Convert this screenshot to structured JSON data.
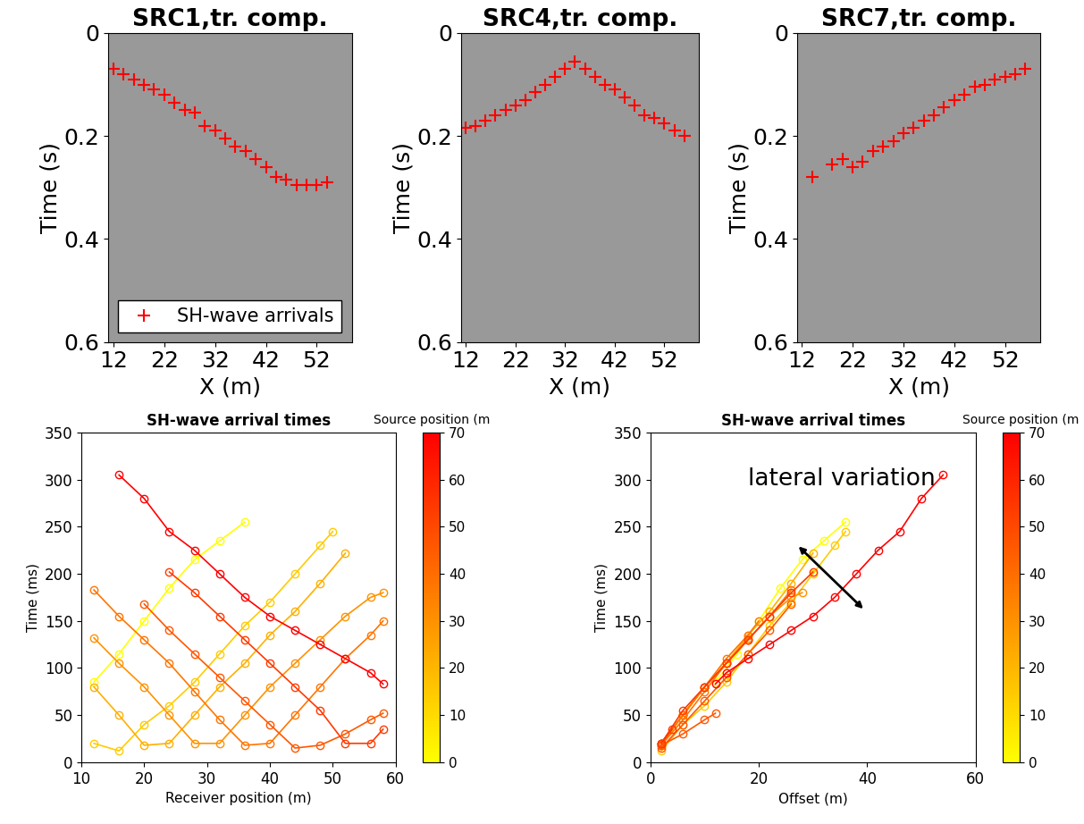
{
  "chart_data": [
    {
      "type": "scatter",
      "title": "SRC1,tr. comp.",
      "x_label": "X (m)",
      "y_label": "Time (s)",
      "xlim": [
        11,
        59
      ],
      "xticks": [
        12,
        22,
        32,
        42,
        52
      ],
      "ylim": [
        0.6,
        0
      ],
      "yticks": [
        0,
        0.2,
        0.4,
        0.6
      ],
      "legend": "lower left",
      "series": [
        {
          "name": "SH-wave arrivals",
          "color": "#ff0000",
          "marker": "plus",
          "x": [
            12,
            14,
            16,
            18,
            20,
            22,
            24,
            26,
            28,
            30,
            32,
            34,
            36,
            38,
            40,
            42,
            44,
            46,
            48,
            50,
            52,
            54
          ],
          "values": [
            0.07,
            0.08,
            0.09,
            0.1,
            0.11,
            0.12,
            0.135,
            0.15,
            0.155,
            0.18,
            0.19,
            0.205,
            0.22,
            0.23,
            0.245,
            0.26,
            0.28,
            0.285,
            0.295,
            0.295,
            0.295,
            0.29
          ]
        }
      ]
    },
    {
      "type": "scatter",
      "title": "SRC4,tr. comp.",
      "x_label": "X (m)",
      "y_label": "Time (s)",
      "xlim": [
        11,
        59
      ],
      "xticks": [
        12,
        22,
        32,
        42,
        52
      ],
      "ylim": [
        0.6,
        0
      ],
      "yticks": [
        0,
        0.2,
        0.4,
        0.6
      ],
      "series": [
        {
          "color": "#ff0000",
          "marker": "plus",
          "x": [
            12,
            14,
            16,
            18,
            20,
            22,
            24,
            26,
            28,
            30,
            32,
            34,
            36,
            38,
            40,
            42,
            44,
            46,
            48,
            50,
            52,
            54,
            56
          ],
          "values": [
            0.185,
            0.18,
            0.17,
            0.16,
            0.15,
            0.14,
            0.13,
            0.115,
            0.1,
            0.085,
            0.07,
            0.055,
            0.07,
            0.085,
            0.1,
            0.11,
            0.125,
            0.14,
            0.16,
            0.165,
            0.175,
            0.19,
            0.2
          ]
        }
      ]
    },
    {
      "type": "scatter",
      "title": "SRC7,tr. comp.",
      "x_label": "X (m)",
      "y_label": "Time (s)",
      "xlim": [
        11,
        59
      ],
      "xticks": [
        12,
        22,
        32,
        42,
        52
      ],
      "ylim": [
        0.6,
        0
      ],
      "yticks": [
        0,
        0.2,
        0.4,
        0.6
      ],
      "series": [
        {
          "color": "#ff0000",
          "marker": "plus",
          "x": [
            14,
            18,
            20,
            22,
            24,
            26,
            28,
            30,
            32,
            34,
            36,
            38,
            40,
            42,
            44,
            46,
            48,
            50,
            52,
            54,
            56
          ],
          "values": [
            0.28,
            0.255,
            0.245,
            0.26,
            0.25,
            0.23,
            0.22,
            0.21,
            0.195,
            0.185,
            0.17,
            0.16,
            0.145,
            0.13,
            0.12,
            0.105,
            0.1,
            0.09,
            0.085,
            0.08,
            0.07
          ]
        }
      ]
    },
    {
      "type": "line",
      "title": "SH-wave arrival times",
      "x_label": "Receiver position (m)",
      "y_label": "Time (ms)",
      "xlim": [
        10,
        60
      ],
      "xticks": [
        10,
        20,
        30,
        40,
        50,
        60
      ],
      "ylim": [
        0,
        350
      ],
      "yticks": [
        0,
        50,
        100,
        150,
        200,
        250,
        300,
        350
      ],
      "marker": "circle",
      "color_scale": {
        "title": "Source position (m",
        "range": [
          0,
          70
        ],
        "ticks": [
          0,
          10,
          20,
          30,
          40,
          50,
          60,
          70
        ]
      },
      "series": [
        {
          "source": 0,
          "x": [
            12,
            16,
            20,
            24,
            28,
            32,
            36
          ],
          "values": [
            85,
            115,
            150,
            185,
            215,
            235,
            255
          ]
        },
        {
          "source": 14,
          "x": [
            12,
            16,
            20,
            24,
            28,
            32,
            36,
            40,
            44,
            48,
            50
          ],
          "values": [
            20,
            12,
            40,
            60,
            85,
            115,
            145,
            170,
            200,
            230,
            245
          ]
        },
        {
          "source": 22,
          "x": [
            12,
            16,
            20,
            24,
            28,
            32,
            36,
            40,
            44,
            48,
            52
          ],
          "values": [
            80,
            50,
            18,
            20,
            50,
            80,
            105,
            135,
            160,
            190,
            222
          ]
        },
        {
          "source": 30,
          "x": [
            12,
            16,
            20,
            24,
            28,
            32,
            36,
            40,
            44,
            48,
            52,
            56,
            58
          ],
          "values": [
            132,
            105,
            80,
            50,
            20,
            20,
            50,
            80,
            105,
            130,
            155,
            175,
            180
          ]
        },
        {
          "source": 38,
          "x": [
            12,
            16,
            20,
            24,
            28,
            32,
            36,
            40,
            44,
            48,
            52,
            56,
            58
          ],
          "values": [
            183,
            155,
            130,
            105,
            75,
            45,
            18,
            20,
            50,
            80,
            110,
            135,
            150
          ]
        },
        {
          "source": 46,
          "x": [
            20,
            24,
            28,
            32,
            36,
            40,
            44,
            48,
            52,
            56,
            58
          ],
          "values": [
            168,
            140,
            115,
            90,
            65,
            40,
            15,
            18,
            30,
            45,
            52
          ]
        },
        {
          "source": 54,
          "x": [
            24,
            28,
            32,
            36,
            40,
            44,
            48,
            52,
            56,
            58
          ],
          "values": [
            202,
            180,
            155,
            130,
            105,
            80,
            55,
            20,
            20,
            35
          ]
        },
        {
          "source": 70,
          "x": [
            16,
            20,
            24,
            28,
            32,
            36,
            40,
            44,
            48,
            52,
            56,
            58
          ],
          "values": [
            305,
            280,
            245,
            225,
            200,
            175,
            155,
            140,
            125,
            110,
            95,
            83
          ]
        }
      ]
    },
    {
      "type": "line",
      "title": "SH-wave arrival times",
      "x_label": "Offset (m)",
      "y_label": "Time (ms)",
      "xlim": [
        0,
        60
      ],
      "xticks": [
        0,
        20,
        40,
        60
      ],
      "ylim": [
        0,
        350
      ],
      "yticks": [
        0,
        50,
        100,
        150,
        200,
        250,
        300,
        350
      ],
      "marker": "circle",
      "annotation": "lateral variation",
      "color_scale": {
        "title": "Source position (m",
        "range": [
          0,
          70
        ],
        "ticks": [
          0,
          10,
          20,
          30,
          40,
          50,
          60,
          70
        ]
      },
      "series": [
        {
          "source": 0,
          "x": [
            12,
            16,
            20,
            24,
            28,
            32,
            36
          ],
          "values": [
            85,
            115,
            150,
            185,
            215,
            235,
            255
          ]
        },
        {
          "source": 14,
          "x": [
            2,
            2,
            6,
            10,
            14,
            18,
            22,
            26,
            30,
            34,
            36
          ],
          "values": [
            20,
            12,
            40,
            60,
            85,
            115,
            145,
            170,
            200,
            230,
            245
          ]
        },
        {
          "source": 22,
          "x": [
            10,
            6,
            2,
            2,
            6,
            10,
            14,
            18,
            22,
            26,
            30
          ],
          "values": [
            80,
            50,
            18,
            20,
            50,
            80,
            105,
            135,
            160,
            190,
            222
          ]
        },
        {
          "source": 30,
          "x": [
            18,
            14,
            10,
            6,
            2,
            2,
            6,
            10,
            14,
            18,
            22,
            26,
            28
          ],
          "values": [
            132,
            105,
            80,
            50,
            20,
            20,
            50,
            80,
            105,
            130,
            155,
            175,
            180
          ]
        },
        {
          "source": 38,
          "x": [
            26,
            22,
            18,
            14,
            10,
            6,
            2,
            2,
            6,
            10,
            14,
            18,
            20
          ],
          "values": [
            183,
            155,
            130,
            105,
            75,
            45,
            18,
            20,
            50,
            80,
            110,
            135,
            150
          ]
        },
        {
          "source": 46,
          "x": [
            26,
            22,
            18,
            14,
            10,
            6,
            2,
            2,
            6,
            10,
            12
          ],
          "values": [
            168,
            140,
            115,
            90,
            65,
            40,
            15,
            18,
            30,
            45,
            52
          ]
        },
        {
          "source": 54,
          "x": [
            30,
            26,
            22,
            18,
            14,
            10,
            6,
            2,
            2,
            4
          ],
          "values": [
            202,
            180,
            155,
            130,
            105,
            80,
            55,
            20,
            20,
            35
          ]
        },
        {
          "source": 70,
          "x": [
            54,
            50,
            46,
            42,
            38,
            34,
            30,
            26,
            22,
            18,
            14,
            12
          ],
          "values": [
            305,
            280,
            245,
            225,
            200,
            175,
            155,
            140,
            125,
            110,
            95,
            83
          ]
        }
      ]
    }
  ]
}
